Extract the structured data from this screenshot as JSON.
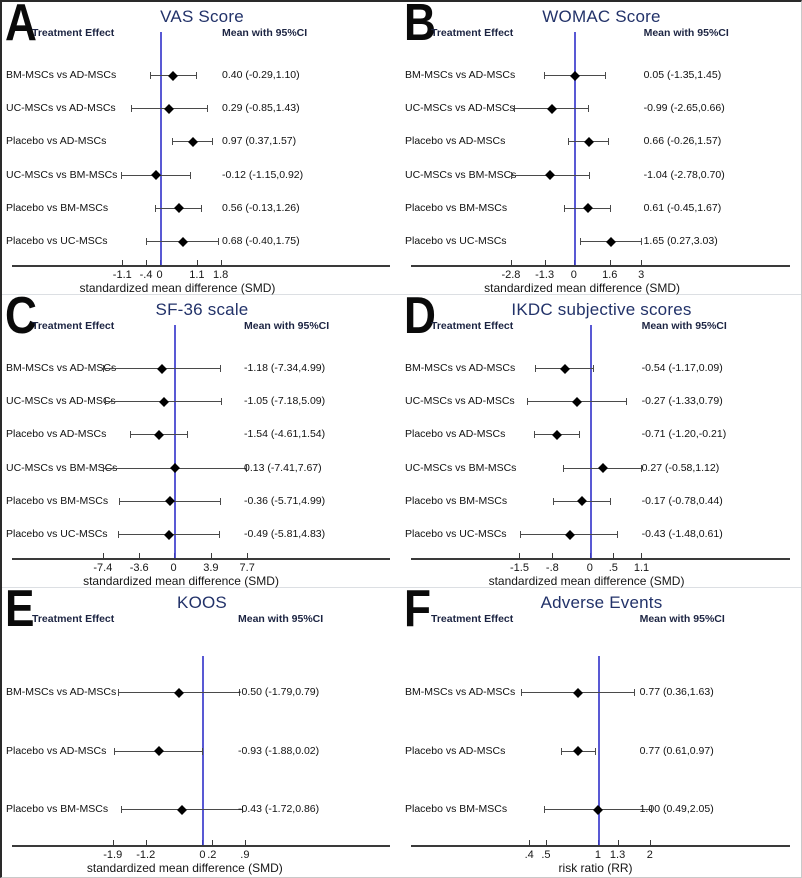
{
  "figure_name": "Network meta-analysis forest plots",
  "chart_data": [
    {
      "panel": "A",
      "letter": "A",
      "type": "forest",
      "title": "VAS Score",
      "col_headers": {
        "treatment": "Treatment Effect",
        "mean_ci": "Mean with 95%CI"
      },
      "xlabel": "standardized mean difference (SMD)",
      "axis": {
        "scale": "linear",
        "ref_value": 0,
        "ref_pct": 39.4,
        "pct_per_unit": 8.48,
        "value_col_pct": 55,
        "ticks": [
          {
            "v": -1.1,
            "label": "-1.1"
          },
          {
            "v": -0.4,
            "label": "-.4"
          },
          {
            "v": 0,
            "label": "0"
          },
          {
            "v": 1.1,
            "label": "1.1"
          },
          {
            "v": 1.8,
            "label": "1.8"
          }
        ]
      },
      "rows": [
        {
          "label": "BM-MSCs vs AD-MSCs",
          "mean": 0.4,
          "lo": -0.29,
          "hi": 1.1,
          "display": "0.40 (-0.29,1.10)"
        },
        {
          "label": "UC-MSCs vs AD-MSCs",
          "mean": 0.29,
          "lo": -0.85,
          "hi": 1.43,
          "display": "0.29 (-0.85,1.43)"
        },
        {
          "label": "Placebo vs AD-MSCs",
          "mean": 0.97,
          "lo": 0.37,
          "hi": 1.57,
          "display": "0.97 (0.37,1.57)"
        },
        {
          "label": "UC-MSCs vs BM-MSCs",
          "mean": -0.12,
          "lo": -1.15,
          "hi": 0.92,
          "display": "-0.12 (-1.15,0.92)"
        },
        {
          "label": "Placebo vs BM-MSCs",
          "mean": 0.56,
          "lo": -0.13,
          "hi": 1.26,
          "display": "0.56 (-0.13,1.26)"
        },
        {
          "label": "Placebo vs UC-MSCs",
          "mean": 0.68,
          "lo": -0.4,
          "hi": 1.75,
          "display": "0.68 (-0.40,1.75)"
        }
      ]
    },
    {
      "panel": "B",
      "letter": "B",
      "type": "forest",
      "title": "WOMAC Score",
      "col_headers": {
        "treatment": "Treatment Effect",
        "mean_ci": "Mean with 95%CI"
      },
      "xlabel": "standardized mean difference (SMD)",
      "axis": {
        "scale": "linear",
        "ref_value": 0,
        "ref_pct": 43.1,
        "pct_per_unit": 5.6,
        "value_col_pct": 60.5,
        "ticks": [
          {
            "v": -2.8,
            "label": "-2.8"
          },
          {
            "v": -1.3,
            "label": "-1.3"
          },
          {
            "v": 0,
            "label": "0"
          },
          {
            "v": 1.6,
            "label": "1.6"
          },
          {
            "v": 3,
            "label": "3"
          }
        ]
      },
      "rows": [
        {
          "label": "BM-MSCs vs AD-MSCs",
          "mean": 0.05,
          "lo": -1.35,
          "hi": 1.45,
          "display": "0.05 (-1.35,1.45)"
        },
        {
          "label": "UC-MSCs vs AD-MSCs",
          "mean": -0.99,
          "lo": -2.65,
          "hi": 0.66,
          "display": "-0.99 (-2.65,0.66)"
        },
        {
          "label": "Placebo vs AD-MSCs",
          "mean": 0.66,
          "lo": -0.26,
          "hi": 1.57,
          "display": "0.66 (-0.26,1.57)"
        },
        {
          "label": "UC-MSCs vs BM-MSCs",
          "mean": -1.04,
          "lo": -2.78,
          "hi": 0.7,
          "display": "-1.04 (-2.78,0.70)"
        },
        {
          "label": "Placebo vs BM-MSCs",
          "mean": 0.61,
          "lo": -0.45,
          "hi": 1.67,
          "display": "0.61 (-0.45,1.67)"
        },
        {
          "label": "Placebo vs UC-MSCs",
          "mean": 1.65,
          "lo": 0.27,
          "hi": 3.03,
          "display": "1.65 (0.27,3.03)"
        }
      ]
    },
    {
      "panel": "C",
      "letter": "C",
      "type": "forest",
      "title": "SF-36 scale",
      "col_headers": {
        "treatment": "Treatment Effect",
        "mean_ci": "Mean with 95%CI"
      },
      "xlabel": "standardized mean difference (SMD)",
      "axis": {
        "scale": "linear",
        "ref_value": 0,
        "ref_pct": 42.9,
        "pct_per_unit": 2.39,
        "value_col_pct": 60.5,
        "ticks": [
          {
            "v": -7.4,
            "label": "-7.4"
          },
          {
            "v": -3.6,
            "label": "-3.6"
          },
          {
            "v": 0,
            "label": "0"
          },
          {
            "v": 3.9,
            "label": "3.9"
          },
          {
            "v": 7.7,
            "label": "7.7"
          }
        ]
      },
      "rows": [
        {
          "label": "BM-MSCs vs AD-MSCs",
          "mean": -1.18,
          "lo": -7.34,
          "hi": 4.99,
          "display": "-1.18 (-7.34,4.99)"
        },
        {
          "label": "UC-MSCs vs AD-MSCs",
          "mean": -1.05,
          "lo": -7.18,
          "hi": 5.09,
          "display": "-1.05 (-7.18,5.09)"
        },
        {
          "label": "Placebo vs AD-MSCs",
          "mean": -1.54,
          "lo": -4.61,
          "hi": 1.54,
          "display": "-1.54 (-4.61,1.54)"
        },
        {
          "label": "UC-MSCs vs BM-MSCs",
          "mean": 0.13,
          "lo": -7.41,
          "hi": 7.67,
          "display": "0.13 (-7.41,7.67)"
        },
        {
          "label": "Placebo vs BM-MSCs",
          "mean": -0.36,
          "lo": -5.71,
          "hi": 4.99,
          "display": "-0.36 (-5.71,4.99)"
        },
        {
          "label": "Placebo vs UC-MSCs",
          "mean": -0.49,
          "lo": -5.81,
          "hi": 4.83,
          "display": "-0.49 (-5.81,4.83)"
        }
      ]
    },
    {
      "panel": "D",
      "letter": "D",
      "type": "forest",
      "title": "IKDC subjective scores",
      "col_headers": {
        "treatment": "Treatment Effect",
        "mean_ci": "Mean with 95%CI"
      },
      "xlabel": "standardized mean difference (SMD)",
      "axis": {
        "scale": "linear",
        "ref_value": 0,
        "ref_pct": 47.1,
        "pct_per_unit": 11.7,
        "value_col_pct": 60,
        "ticks": [
          {
            "v": -1.5,
            "label": "-1.5"
          },
          {
            "v": -0.8,
            "label": "-.8"
          },
          {
            "v": 0,
            "label": "0"
          },
          {
            "v": 0.5,
            "label": ".5"
          },
          {
            "v": 1.1,
            "label": "1.1"
          }
        ]
      },
      "rows": [
        {
          "label": "BM-MSCs vs AD-MSCs",
          "mean": -0.54,
          "lo": -1.17,
          "hi": 0.09,
          "display": "-0.54 (-1.17,0.09)"
        },
        {
          "label": "UC-MSCs vs AD-MSCs",
          "mean": -0.27,
          "lo": -1.33,
          "hi": 0.79,
          "display": "-0.27 (-1.33,0.79)"
        },
        {
          "label": "Placebo vs AD-MSCs",
          "mean": -0.71,
          "lo": -1.2,
          "hi": -0.21,
          "display": "-0.71 (-1.20,-0.21)"
        },
        {
          "label": "UC-MSCs vs BM-MSCs",
          "mean": 0.27,
          "lo": -0.58,
          "hi": 1.12,
          "display": "0.27 (-0.58,1.12)"
        },
        {
          "label": "Placebo vs BM-MSCs",
          "mean": -0.17,
          "lo": -0.78,
          "hi": 0.44,
          "display": "-0.17 (-0.78,0.44)"
        },
        {
          "label": "Placebo vs UC-MSCs",
          "mean": -0.43,
          "lo": -1.48,
          "hi": 0.61,
          "display": "-0.43 (-1.48,0.61)"
        }
      ]
    },
    {
      "panel": "E",
      "letter": "E",
      "type": "forest",
      "title": "KOOS",
      "col_headers": {
        "treatment": "Treatment Effect",
        "mean_ci": "Mean with 95%CI"
      },
      "xlabel": "standardized mean difference (SMD)",
      "axis": {
        "scale": "linear",
        "ref_value": 0,
        "ref_pct": 50.1,
        "pct_per_unit": 11.8,
        "value_col_pct": 59,
        "ticks": [
          {
            "v": -1.9,
            "label": "-1.9"
          },
          {
            "v": -1.2,
            "label": "-1.2"
          },
          {
            "v": 0,
            "label": "0"
          },
          {
            "v": 0.2,
            "label": ".2"
          },
          {
            "v": 0.9,
            "label": ".9"
          }
        ]
      },
      "rows": [
        {
          "label": "BM-MSCs vs AD-MSCs",
          "mean": -0.5,
          "lo": -1.79,
          "hi": 0.79,
          "display": "-0.50 (-1.79,0.79)"
        },
        {
          "label": "Placebo vs AD-MSCs",
          "mean": -0.93,
          "lo": -1.88,
          "hi": 0.02,
          "display": "-0.93 (-1.88,0.02)"
        },
        {
          "label": "Placebo vs BM-MSCs",
          "mean": -0.43,
          "lo": -1.72,
          "hi": 0.86,
          "display": "-0.43 (-1.72,0.86)"
        }
      ]
    },
    {
      "panel": "F",
      "letter": "F",
      "type": "forest",
      "title": "Adverse Events",
      "col_headers": {
        "treatment": "Treatment Effect",
        "mean_ci": "Mean with 95%CI"
      },
      "xlabel": "risk ratio (RR)",
      "axis": {
        "scale": "log",
        "ref_value": 1,
        "ref_pct": 49.1,
        "pct_per_unit": 18.7,
        "value_col_pct": 59.5,
        "ticks": [
          {
            "v": 0.4,
            "label": ".4"
          },
          {
            "v": 0.5,
            "label": ".5"
          },
          {
            "v": 1,
            "label": "1"
          },
          {
            "v": 1.3,
            "label": "1.3"
          },
          {
            "v": 2,
            "label": "2"
          }
        ]
      },
      "rows": [
        {
          "label": "BM-MSCs vs AD-MSCs",
          "mean": 0.77,
          "lo": 0.36,
          "hi": 1.63,
          "display": "0.77 (0.36,1.63)"
        },
        {
          "label": "Placebo vs AD-MSCs",
          "mean": 0.77,
          "lo": 0.61,
          "hi": 0.97,
          "display": "0.77 (0.61,0.97)"
        },
        {
          "label": "Placebo vs BM-MSCs",
          "mean": 1.0,
          "lo": 0.49,
          "hi": 2.05,
          "display": "1.00 (0.49,2.05)"
        }
      ]
    }
  ]
}
